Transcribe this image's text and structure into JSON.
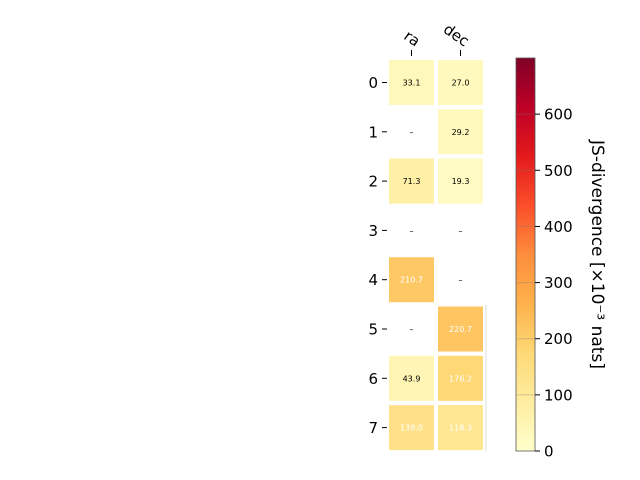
{
  "chart_data": {
    "type": "heatmap",
    "columns": [
      "ra",
      "dec"
    ],
    "rows": [
      "0",
      "1",
      "2",
      "3",
      "4",
      "5",
      "6",
      "7"
    ],
    "cells": [
      [
        {
          "value": 33.1,
          "label": "33.1"
        },
        {
          "value": 27.0,
          "label": "27.0"
        }
      ],
      [
        {
          "value": null,
          "label": "–"
        },
        {
          "value": 29.2,
          "label": "29.2"
        }
      ],
      [
        {
          "value": 71.3,
          "label": "71.3"
        },
        {
          "value": 19.3,
          "label": "19.3"
        }
      ],
      [
        {
          "value": null,
          "label": "–"
        },
        {
          "value": null,
          "label": "–"
        }
      ],
      [
        {
          "value": 210.7,
          "label": "210.7"
        },
        {
          "value": null,
          "label": "–"
        }
      ],
      [
        {
          "value": null,
          "label": "–"
        },
        {
          "value": 220.7,
          "label": "220.7"
        }
      ],
      [
        {
          "value": 43.9,
          "label": "43.9"
        },
        {
          "value": 176.2,
          "label": "176.2"
        }
      ],
      [
        {
          "value": 138.0,
          "label": "138.0"
        },
        {
          "value": 118.3,
          "label": "118.3"
        }
      ]
    ],
    "colorbar": {
      "label": "JS-divergence [×10⁻³ nats]",
      "min": 0,
      "max": 700,
      "ticks": [
        {
          "value": 0,
          "label": "0"
        },
        {
          "value": 100,
          "label": "100"
        },
        {
          "value": 200,
          "label": "200"
        },
        {
          "value": 300,
          "label": "300"
        },
        {
          "value": 400,
          "label": "400"
        },
        {
          "value": 500,
          "label": "500"
        },
        {
          "value": 600,
          "label": "600"
        }
      ],
      "colormap": "YlOrRd",
      "colormap_stops": [
        "#ffffcc",
        "#ffeda0",
        "#fed976",
        "#feb24c",
        "#fd8d3c",
        "#fc4e2a",
        "#e31a1c",
        "#bd0026",
        "#800026"
      ]
    },
    "missing_label": "–",
    "label_text_colors": {
      "dark": "#000000",
      "light": "#ffffff"
    }
  }
}
